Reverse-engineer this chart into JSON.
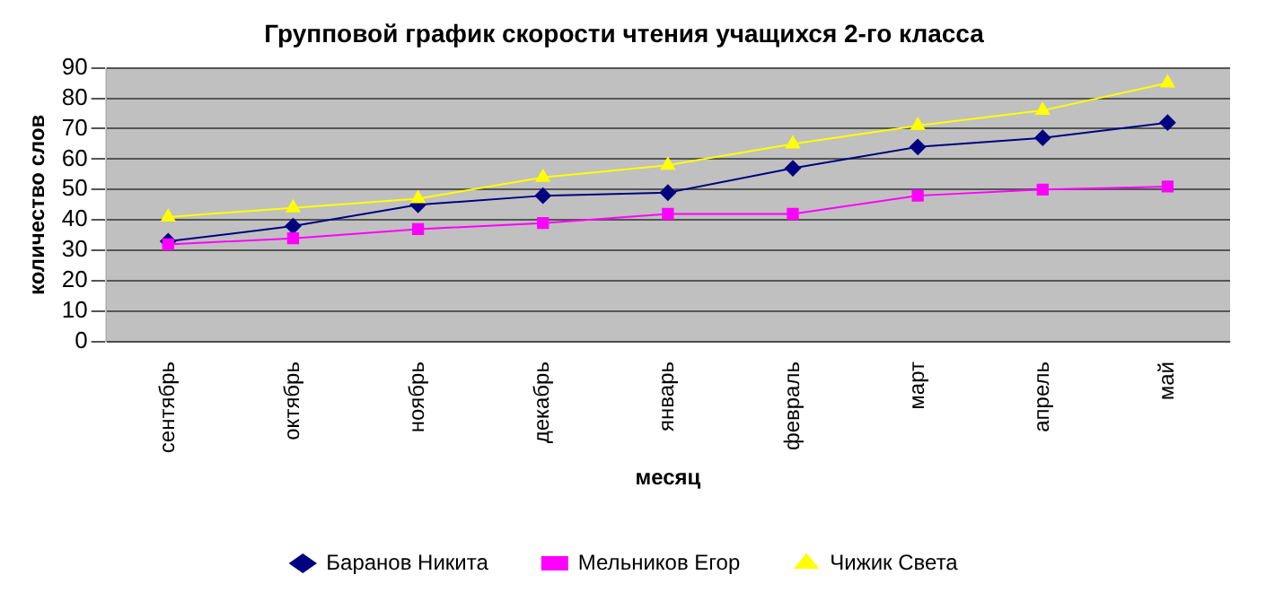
{
  "chart_data": {
    "type": "line",
    "title": "Групповой график скорости чтения учащихся 2-го класса",
    "xlabel": "месяц",
    "ylabel": "количество слов",
    "categories": [
      "сентябрь",
      "октябрь",
      "ноябрь",
      "декабрь",
      "январь",
      "февраль",
      "март",
      "апрель",
      "май"
    ],
    "series": [
      {
        "name": "Баранов Никита",
        "color": "#000080",
        "marker": "diamond",
        "values": [
          33,
          38,
          45,
          48,
          49,
          57,
          64,
          67,
          72
        ]
      },
      {
        "name": "Мельников Егор",
        "color": "#ff00ff",
        "marker": "square",
        "values": [
          32,
          34,
          37,
          39,
          42,
          42,
          48,
          50,
          51
        ]
      },
      {
        "name": "Чижик Света",
        "color": "#ffff00",
        "marker": "triangle",
        "values": [
          41,
          44,
          47,
          54,
          58,
          65,
          71,
          76,
          85
        ]
      }
    ],
    "ylim": [
      0,
      90
    ],
    "yticks": [
      0,
      10,
      20,
      30,
      40,
      50,
      60,
      70,
      80,
      90
    ],
    "grid": "y",
    "legend": "bottom"
  }
}
